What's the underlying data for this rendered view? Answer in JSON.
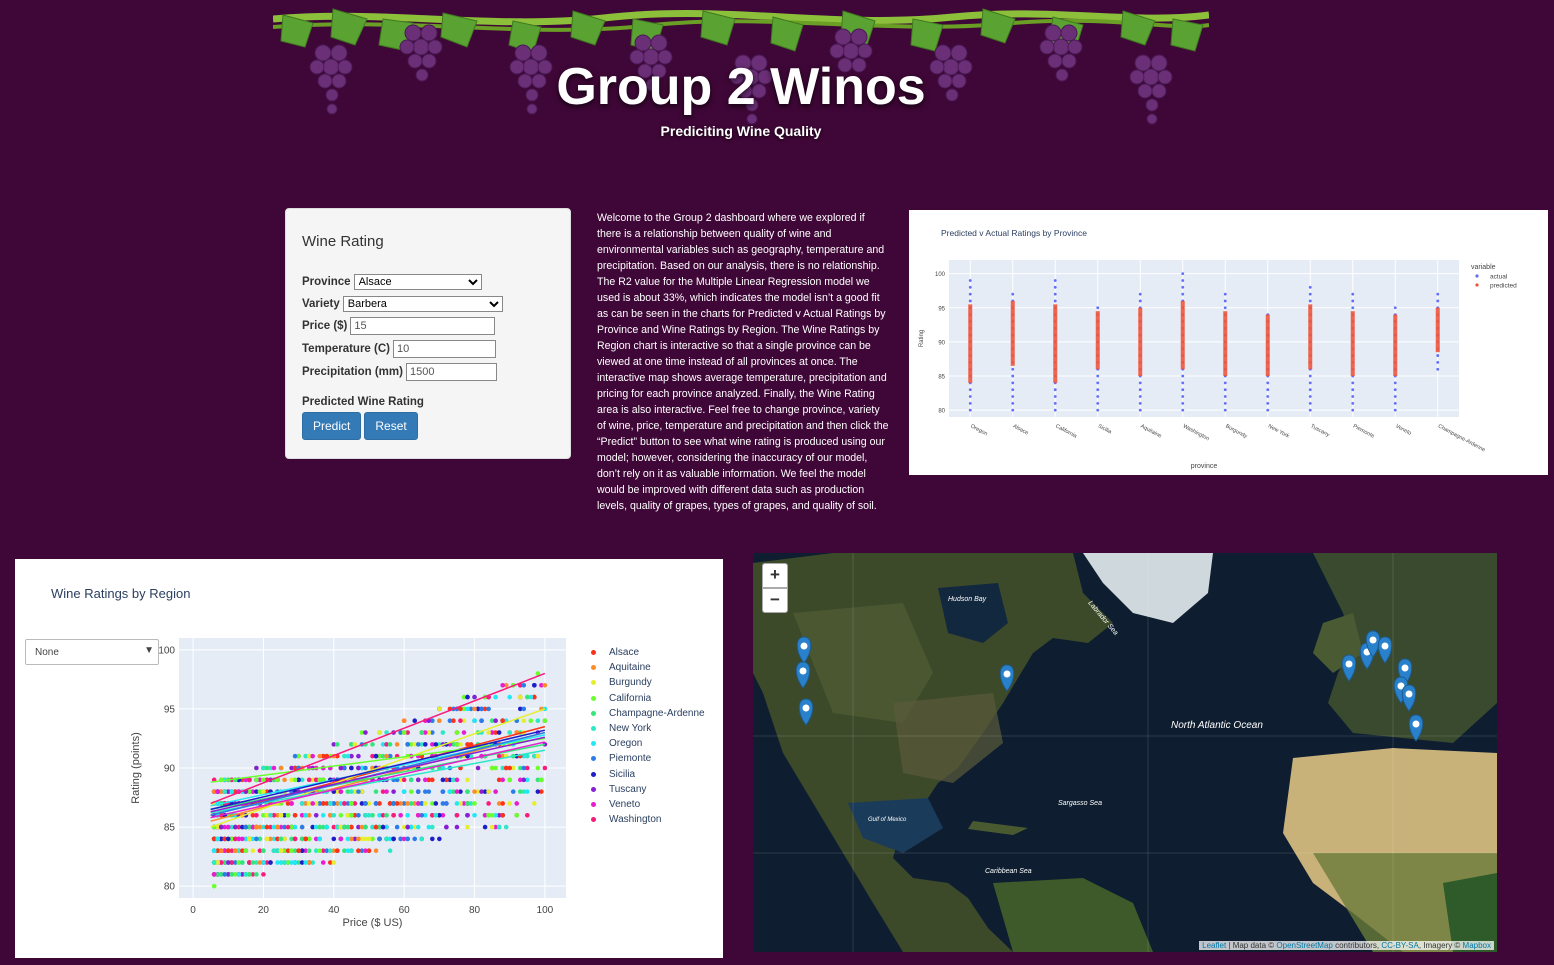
{
  "banner": {
    "title": "Group 2 Winos",
    "subtitle": "Prediciting Wine Quality"
  },
  "form": {
    "heading": "Wine Rating",
    "province_label": "Province",
    "province_value": "Alsace",
    "variety_label": "Variety",
    "variety_value": "Barbera",
    "price_label": "Price ($)",
    "price_value": "15",
    "temperature_label": "Temperature (C)",
    "temperature_value": "10",
    "precipitation_label": "Precipitation (mm)",
    "precipitation_value": "1500",
    "predicted_label": "Predicted Wine Rating",
    "predict_button": "Predict",
    "reset_button": "Reset"
  },
  "description": "Welcome to the Group 2 dashboard where we explored if there is a relationship between quality of wine and environmental variables such as geography, temperature and precipitation. Based on our analysis, there is no relationship. The R2 value for the Multiple Linear Regression model we used is about 33%, which indicates the model isn’t a good fit as can be seen in the charts for Predicted v Actual Ratings by Province and Wine Ratings by Region. The Wine Ratings by Region chart is interactive so that a single province can be viewed at one time instead of all provinces at once. The interactive map shows average temperature, precipitation and pricing for each province analyzed. Finally, the Wine Rating area is also interactive. Feel free to change province, variety of wine, price, temperature and precipitation and then click the “Predict” button to see what wine rating is produced using our model; however, considering the inaccuracy of our model, don’t rely on it as valuable information. We feel the model would be improved with different data such as production levels, quality of grapes, types of grapes, and quality of soil.",
  "region_dropdown": {
    "selected": "None"
  },
  "chart_data": [
    {
      "type": "scatter",
      "title": "Predicted v Actual Ratings by Province",
      "xlabel": "province",
      "ylabel": "Rating",
      "ylim": [
        79,
        102
      ],
      "yticks": [
        80,
        85,
        90,
        95,
        100
      ],
      "legend_title": "variable",
      "legend_position": "top-right",
      "categories": [
        "Oregon",
        "Alsace",
        "California",
        "Sicilia",
        "Aquitaine",
        "Washington",
        "Burgundy",
        "New York",
        "Tuscany",
        "Piemonte",
        "Veneto",
        "Champagne-Ardenne"
      ],
      "series": [
        {
          "name": "actual",
          "color": "#636efa",
          "ranges": [
            [
              80,
              99
            ],
            [
              80,
              97
            ],
            [
              80,
              99
            ],
            [
              80,
              95
            ],
            [
              80,
              97
            ],
            [
              80,
              100
            ],
            [
              80,
              97
            ],
            [
              80,
              94
            ],
            [
              80,
              98
            ],
            [
              80,
              97
            ],
            [
              80,
              95
            ],
            [
              86,
              97
            ]
          ]
        },
        {
          "name": "predicted",
          "color": "#ef553b",
          "ranges": [
            [
              84,
              95.5
            ],
            [
              86.5,
              96
            ],
            [
              84,
              95.5
            ],
            [
              86,
              94.5
            ],
            [
              85,
              95
            ],
            [
              86,
              96
            ],
            [
              85,
              94.5
            ],
            [
              85,
              94
            ],
            [
              86,
              95.5
            ],
            [
              85,
              94.5
            ],
            [
              85,
              94
            ],
            [
              88.5,
              95
            ]
          ]
        }
      ]
    },
    {
      "type": "scatter",
      "title": "Wine Ratings by Region",
      "xlabel": "Price ($ US)",
      "ylabel": "Rating (points)",
      "xlim": [
        -4,
        106
      ],
      "ylim": [
        79,
        101
      ],
      "xticks": [
        0,
        20,
        40,
        60,
        80,
        100
      ],
      "yticks": [
        80,
        85,
        90,
        95,
        100
      ],
      "legend_position": "right",
      "series": [
        {
          "name": "Alsace",
          "color": "#fd3216",
          "trend": [
            [
              5,
              86.0
            ],
            [
              100,
              93.5
            ]
          ]
        },
        {
          "name": "Aquitaine",
          "color": "#fe8b2a",
          "trend": [
            [
              5,
              85.5
            ],
            [
              100,
              93.0
            ]
          ]
        },
        {
          "name": "Burgundy",
          "color": "#e5ef2e",
          "trend": [
            [
              5,
              85.0
            ],
            [
              100,
              95.0
            ]
          ]
        },
        {
          "name": "California",
          "color": "#6aff2d",
          "trend": [
            [
              5,
              88.8
            ],
            [
              100,
              92.5
            ]
          ]
        },
        {
          "name": "Champagne-Ardenne",
          "color": "#34e67a",
          "trend": [
            [
              5,
              86.5
            ],
            [
              100,
              92.0
            ]
          ]
        },
        {
          "name": "New York",
          "color": "#2de8c6",
          "trend": [
            [
              5,
              86.2
            ],
            [
              100,
              91.5
            ]
          ]
        },
        {
          "name": "Oregon",
          "color": "#22e8f5",
          "trend": [
            [
              5,
              86.8
            ],
            [
              100,
              92.8
            ]
          ]
        },
        {
          "name": "Piemonte",
          "color": "#2a7ce8",
          "trend": [
            [
              5,
              86.0
            ],
            [
              100,
              93.0
            ]
          ]
        },
        {
          "name": "Sicilia",
          "color": "#1d1ec8",
          "trend": [
            [
              5,
              86.5
            ],
            [
              100,
              93.2
            ]
          ]
        },
        {
          "name": "Tuscany",
          "color": "#8a1dd6",
          "trend": [
            [
              5,
              86.3
            ],
            [
              100,
              92.6
            ]
          ]
        },
        {
          "name": "Veneto",
          "color": "#e81dd1",
          "trend": [
            [
              5,
              85.8
            ],
            [
              100,
              92.2
            ]
          ]
        },
        {
          "name": "Washington",
          "color": "#fa1a7a",
          "trend": [
            [
              5,
              87.0
            ],
            [
              100,
              98.0
            ]
          ]
        }
      ]
    }
  ],
  "map": {
    "zoom_in": "+",
    "zoom_out": "−",
    "labels": {
      "north_atlantic": "North Atlantic Ocean",
      "sargasso": "Sargasso Sea",
      "caribbean": "Caribbean Sea",
      "hudson": "Hudson Bay",
      "labrador": "Labrador Sea",
      "gulf": "Gulf of Mexico"
    },
    "attribution": {
      "leaflet": "Leaflet",
      "mid1": " | Map data © ",
      "osm": "OpenStreetMap",
      "mid2": " contributors, ",
      "license": "CC-BY-SA",
      "mid3": ", Imagery © ",
      "mapbox": "Mapbox"
    }
  }
}
